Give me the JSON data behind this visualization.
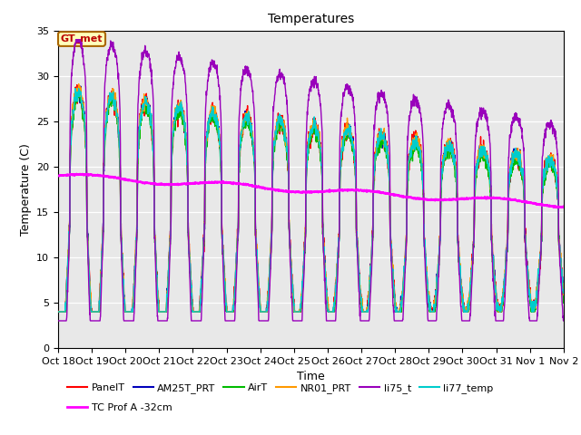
{
  "title": "Temperatures",
  "xlabel": "Time",
  "ylabel": "Temperature (C)",
  "ylim": [
    0,
    35
  ],
  "n_days": 15,
  "x_tick_labels": [
    "Oct 18",
    "Oct 19",
    "Oct 20",
    "Oct 21",
    "Oct 22",
    "Oct 23",
    "Oct 24",
    "Oct 25",
    "Oct 26",
    "Oct 27",
    "Oct 28",
    "Oct 29",
    "Oct 30",
    "Oct 31",
    "Nov 1",
    "Nov 2"
  ],
  "annotation_text": "GT_met",
  "annotation_bg": "#FFFFBB",
  "annotation_border": "#AA6600",
  "bg_color": "#E8E8E8",
  "series": {
    "PanelT": {
      "color": "#FF0000",
      "lw": 1.0
    },
    "AM25T_PRT": {
      "color": "#0000BB",
      "lw": 1.0
    },
    "AirT": {
      "color": "#00BB00",
      "lw": 1.0
    },
    "NR01_PRT": {
      "color": "#FF9900",
      "lw": 1.0
    },
    "li75_t": {
      "color": "#9900BB",
      "lw": 1.0
    },
    "li77_temp": {
      "color": "#00CCCC",
      "lw": 1.0
    },
    "TC Prof A -32cm": {
      "color": "#FF00FF",
      "lw": 1.6
    }
  },
  "legend_order": [
    "PanelT",
    "AM25T_PRT",
    "AirT",
    "NR01_PRT",
    "li75_t",
    "li77_temp",
    "TC Prof A -32cm"
  ]
}
